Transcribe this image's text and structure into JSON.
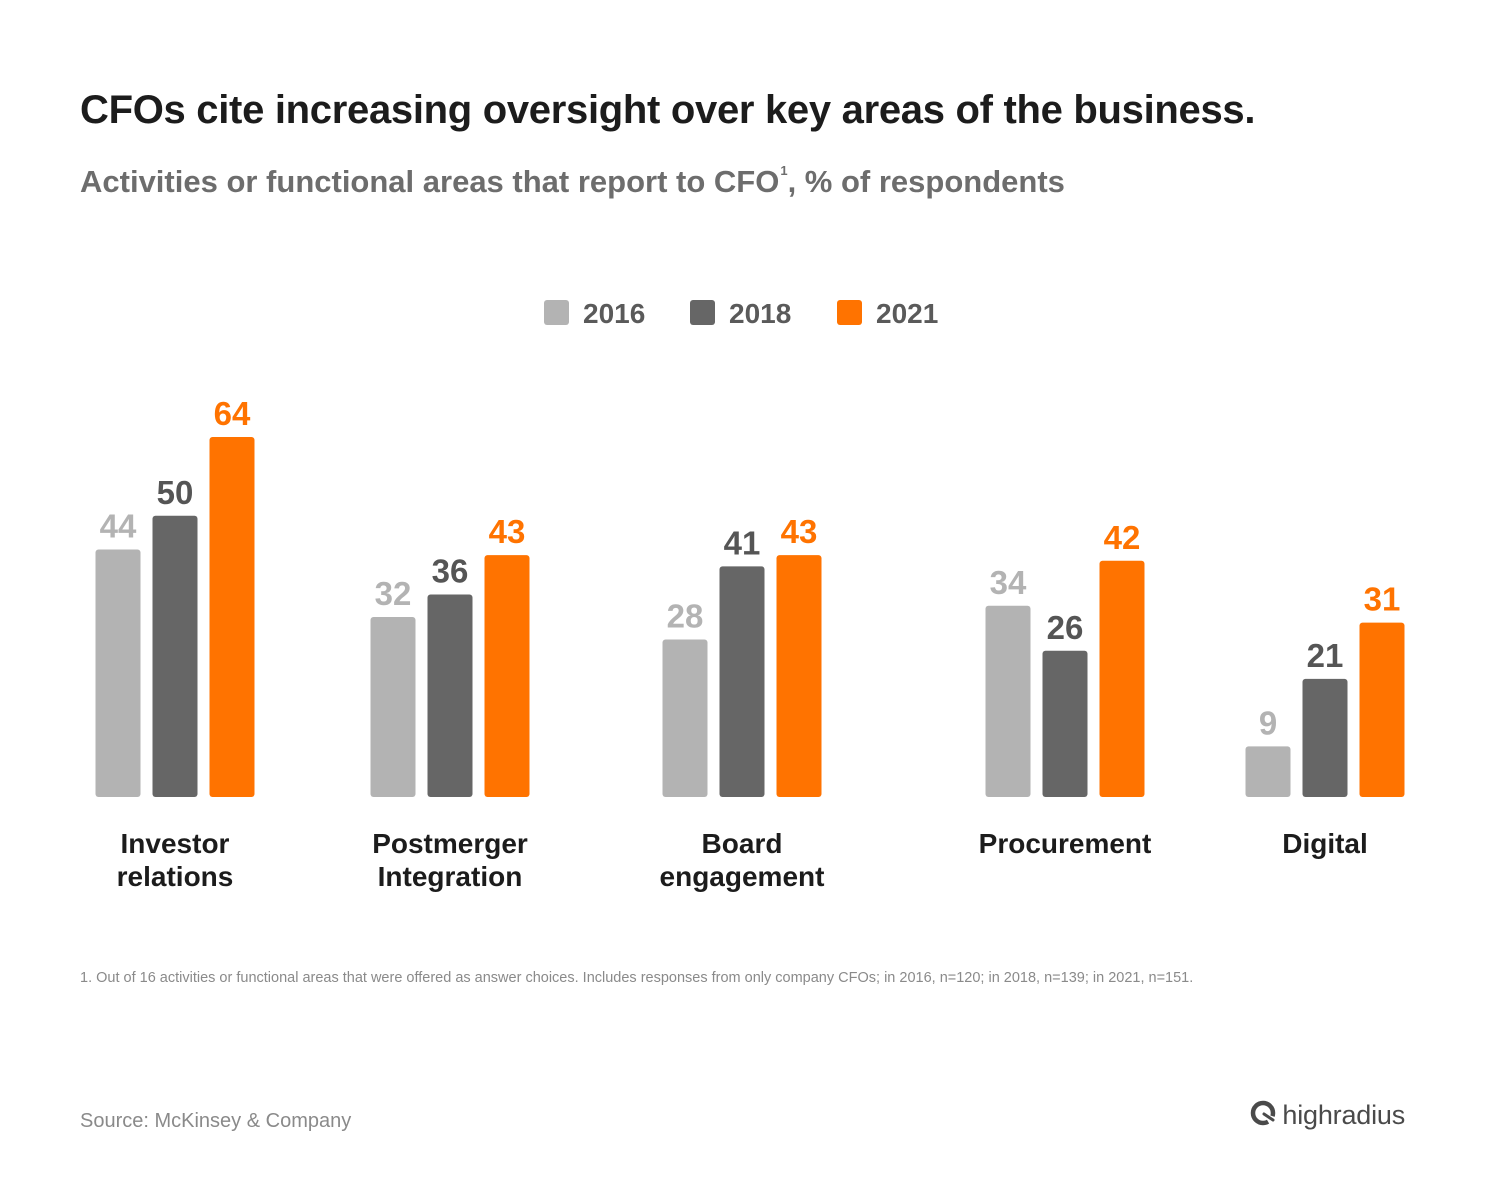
{
  "title": "CFOs cite increasing oversight over key areas of the business.",
  "subtitle": {
    "main": "Activities or functional areas that report to CFO",
    "footnote_marker": "1",
    "suffix": ", % of respondents"
  },
  "footnote": "1. Out of 16 activities or functional areas that were offered as answer choices. Includes responses from only company CFOs; in 2016, n=120; in 2018, n=139; in 2021, n=151.",
  "source": "Source: McKinsey & Company",
  "logo": {
    "text": "highradius",
    "icon": "highradius-logo-icon"
  },
  "colors": {
    "2016": "#b3b3b3",
    "2018": "#666666",
    "2021": "#ff7300"
  },
  "chart_data": {
    "type": "bar",
    "categories": [
      [
        "Investor",
        "relations"
      ],
      [
        "Postmerger",
        "Integration"
      ],
      [
        "Board",
        "engagement"
      ],
      [
        "Procurement"
      ],
      [
        "Digital"
      ]
    ],
    "series": [
      {
        "name": "2016",
        "color": "#b3b3b3",
        "values": [
          44,
          32,
          28,
          34,
          9
        ]
      },
      {
        "name": "2018",
        "color": "#666666",
        "values": [
          50,
          36,
          41,
          26,
          21
        ]
      },
      {
        "name": "2021",
        "color": "#ff7300",
        "values": [
          64,
          43,
          43,
          42,
          31
        ]
      }
    ],
    "legend": "top-center",
    "grid": false,
    "ylim": [
      0,
      64
    ]
  }
}
